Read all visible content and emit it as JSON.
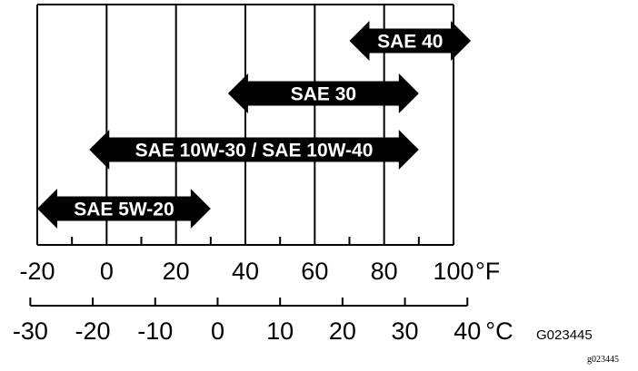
{
  "fahrenheit_scale": {
    "unit_label": "°F",
    "ticks": [
      -20,
      0,
      20,
      40,
      60,
      80,
      100
    ]
  },
  "celsius_scale": {
    "unit_label": "°C",
    "ticks": [
      -30,
      -20,
      -10,
      0,
      10,
      20,
      30,
      40
    ]
  },
  "oil_grades": [
    {
      "label": "SAE 40",
      "min_f": 70,
      "max_f": 105
    },
    {
      "label": "SAE 30",
      "min_f": 35,
      "max_f": 90
    },
    {
      "label": "SAE 10W-30 / SAE 10W-40",
      "min_f": -5,
      "max_f": 90
    },
    {
      "label": "SAE 5W-20",
      "min_f": -20,
      "max_f": 30
    }
  ],
  "figure_code": "G023445",
  "small_code": "g023445",
  "colors": {
    "bar": "#000000",
    "text_on_bar": "#ffffff",
    "lines": "#000000"
  }
}
